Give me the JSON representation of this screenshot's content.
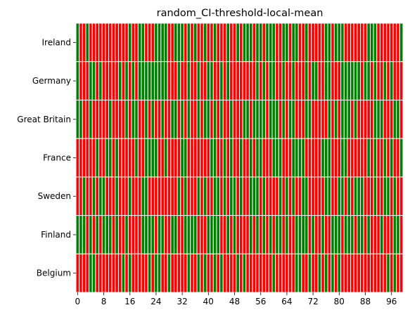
{
  "chart_data": {
    "type": "heatmap",
    "title": "random_CI-threshold-local-mean",
    "xlabel": "",
    "ylabel": "",
    "rows": [
      "Ireland",
      "Germany",
      "Great Britain",
      "France",
      "Sweden",
      "Finland",
      "Belgium"
    ],
    "x": {
      "count": 100,
      "tick_labels": [
        "0",
        "8",
        "16",
        "24",
        "32",
        "40",
        "48",
        "56",
        "64",
        "72",
        "80",
        "88",
        "96"
      ],
      "tick_values": [
        0,
        8,
        16,
        24,
        32,
        40,
        48,
        56,
        64,
        72,
        80,
        88,
        96
      ]
    },
    "legend": "none",
    "grid": false,
    "colors": {
      "0": "#ff0000",
      "1": "#008000",
      "separator": "#ffffff"
    },
    "values": [
      "1001000000000000100110001111001110101001001000100101110110111001101100100000110111000000011100000001",
      "1000110100000101010111111111000100100100110010100000000101011001001000101100110001111110110100101000",
      "1100100000100001011001010010011010100101101010010001101111011101011000110000010101110100000111000110",
      "0000001001101000001001111001000011000000011001010010010110001110001111000001110001100000010100101001",
      "0010010110001000100011000000000101000101001101011010011101000010101001100000110011010111000100110100",
      "1110101011101001000011110110011001111000111100101000010101010110100111101001001110111011010001000110",
      "0000110000000010100000101100100000100101001010000101000000001000000110010010101010000000000000010100"
    ]
  }
}
